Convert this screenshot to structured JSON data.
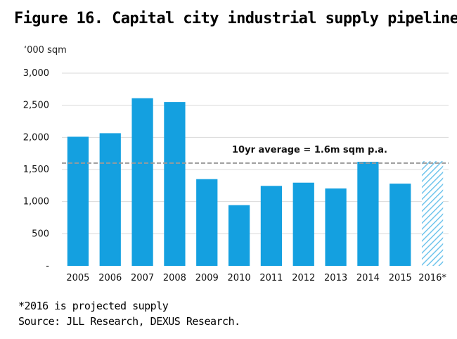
{
  "title": "Figure 16. Capital city industrial supply pipeline",
  "footnote": {
    "projected": "*2016 is projected supply",
    "source": "Source: JLL Research, DEXUS Research."
  },
  "colors": {
    "bar": "#14A0E0",
    "projected_hatch": "#6FC4EC",
    "average_line": "#9A9A9A",
    "grid": "#DADADA"
  },
  "chart_data": {
    "type": "bar",
    "ylabel": "‘000 sqm",
    "ylim": [
      0,
      3000
    ],
    "yticks": [
      {
        "value": 0,
        "label": "-"
      },
      {
        "value": 500,
        "label": "500"
      },
      {
        "value": 1000,
        "label": "1,000"
      },
      {
        "value": 1500,
        "label": "1,500"
      },
      {
        "value": 2000,
        "label": "2,000"
      },
      {
        "value": 2500,
        "label": "2,500"
      },
      {
        "value": 3000,
        "label": "3,000"
      }
    ],
    "grid": true,
    "categories": [
      "2005",
      "2006",
      "2007",
      "2008",
      "2009",
      "2010",
      "2011",
      "2012",
      "2013",
      "2014",
      "2015",
      "2016*"
    ],
    "values": [
      2010,
      2065,
      2610,
      2550,
      1350,
      945,
      1245,
      1295,
      1205,
      1620,
      1280,
      1630
    ],
    "projected": [
      false,
      false,
      false,
      false,
      false,
      false,
      false,
      false,
      false,
      false,
      false,
      true
    ],
    "reference_line": {
      "value": 1600,
      "label": "10yr average = 1.6m sqm p.a.",
      "style": "dashed"
    }
  }
}
